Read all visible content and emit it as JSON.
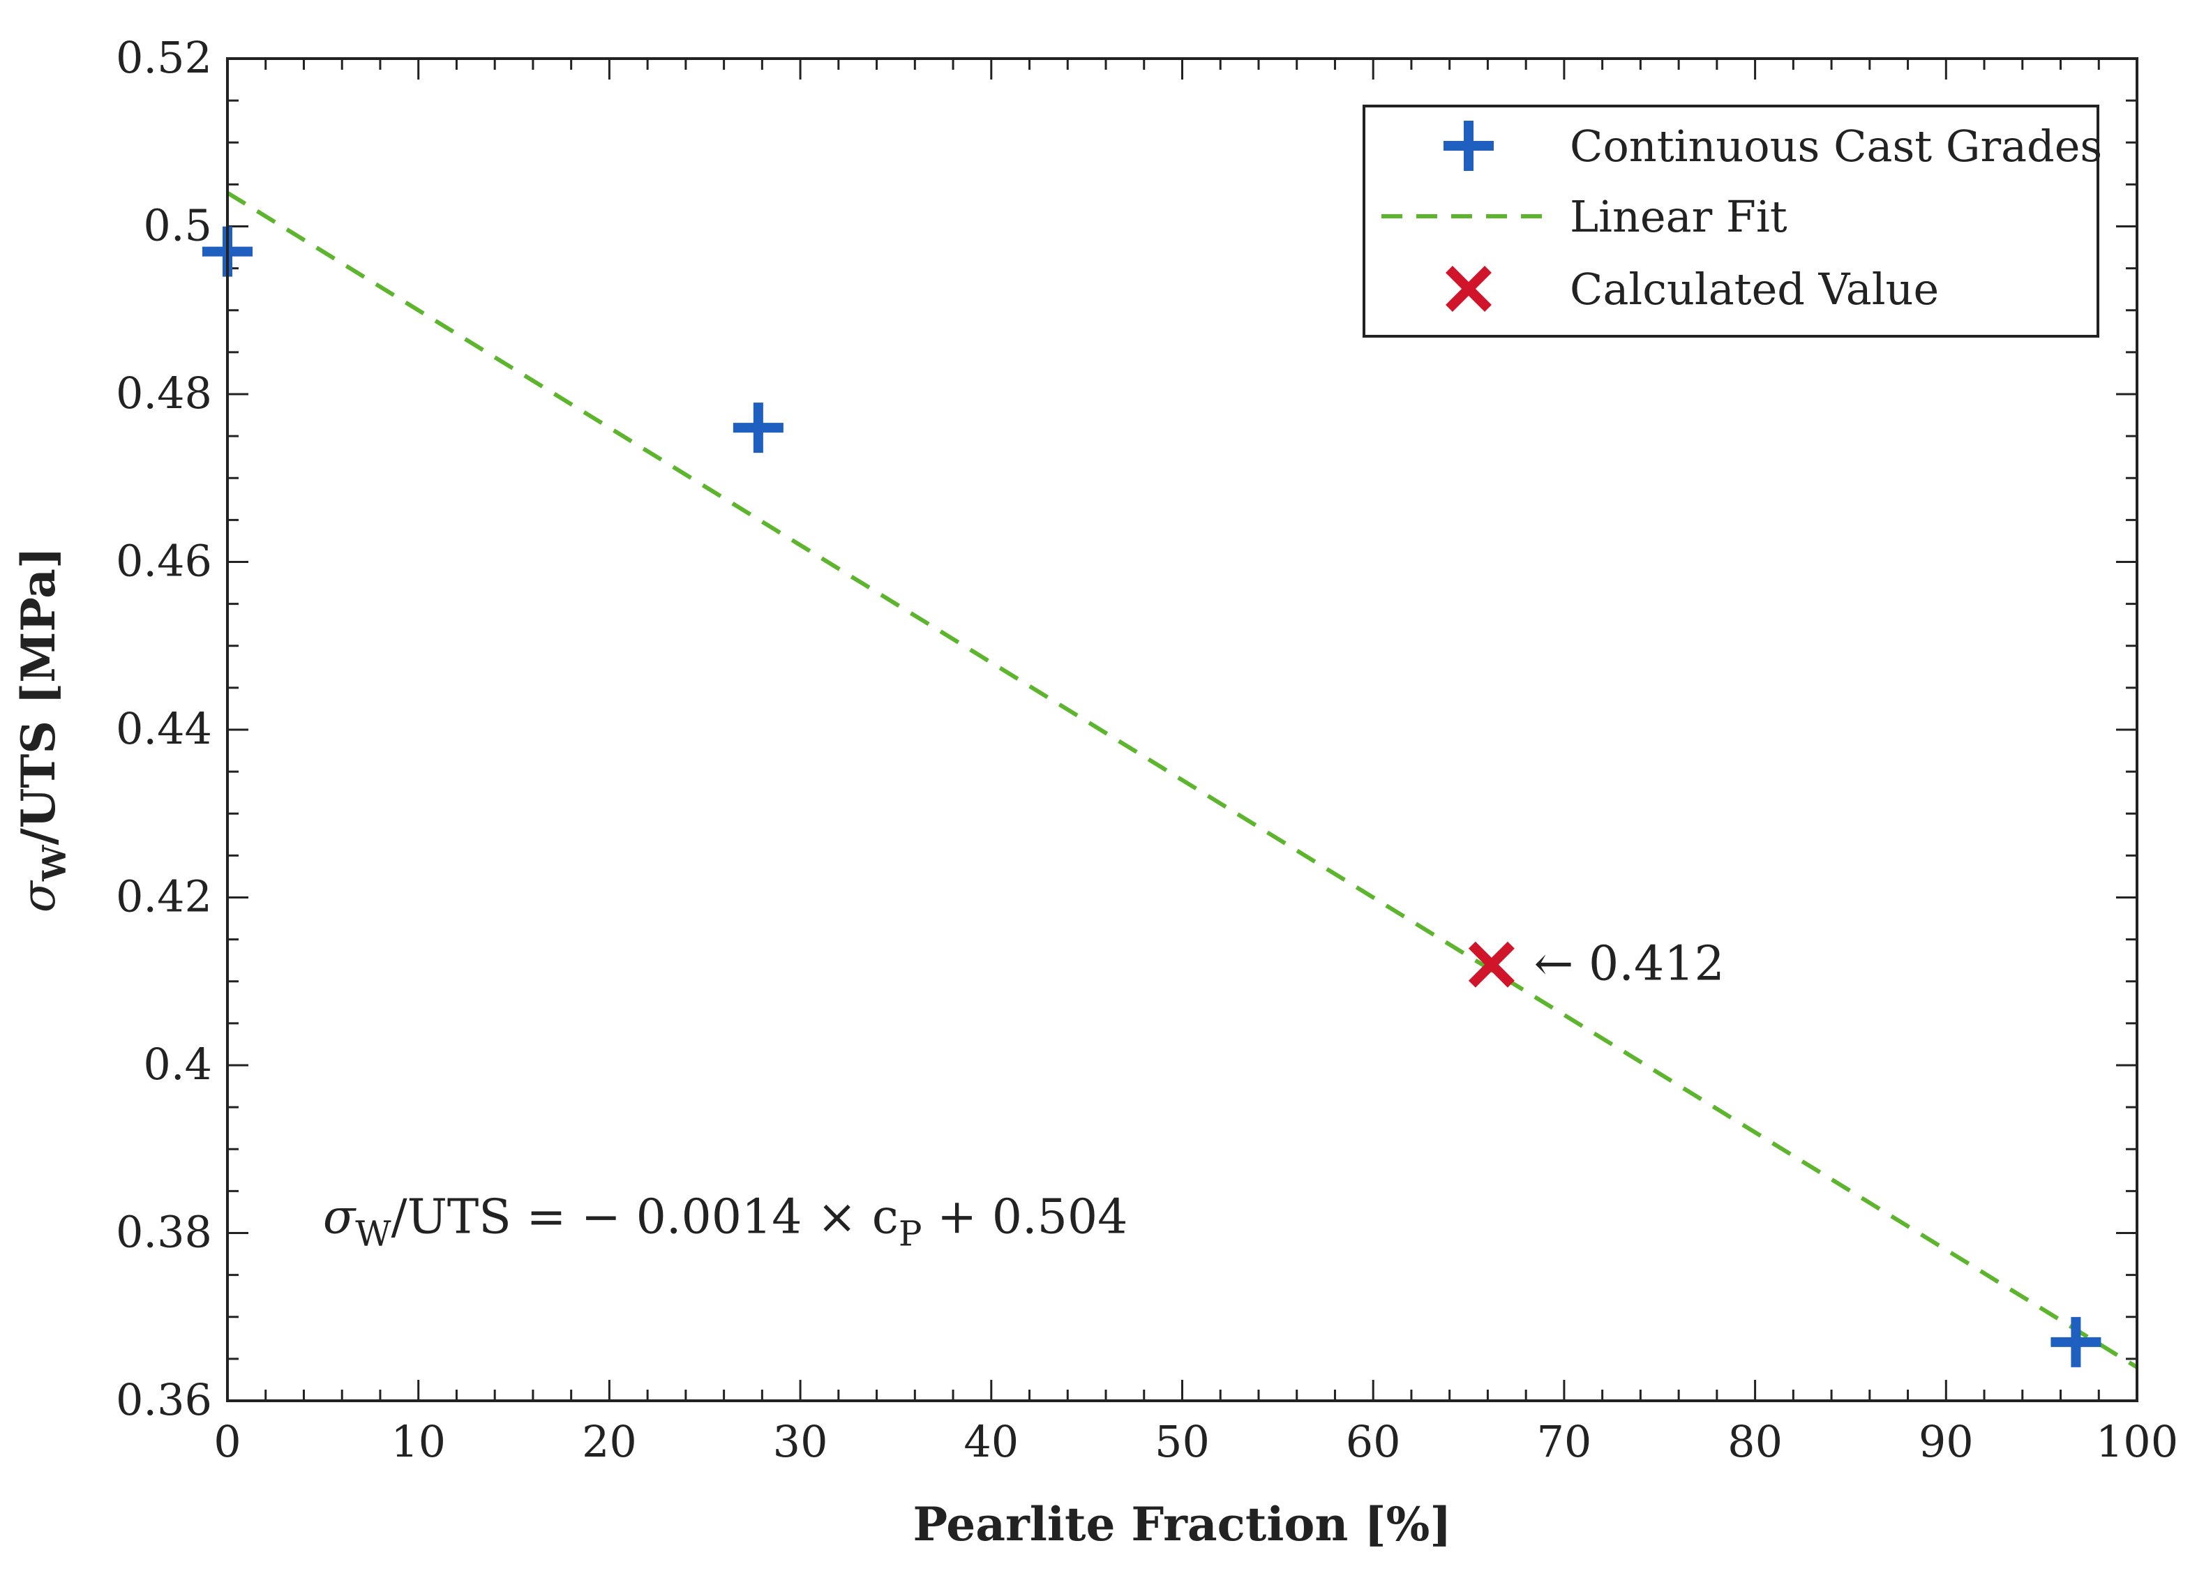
{
  "chart_data": {
    "type": "scatter",
    "title": "",
    "xlabel": "Pearlite Fraction [%]",
    "ylabel": {
      "sigma": "σ",
      "sub": "W",
      "rest": "/UTS [MPa]"
    },
    "xlim": [
      0,
      100
    ],
    "ylim": [
      0.36,
      0.52
    ],
    "xticks": [
      0,
      10,
      20,
      30,
      40,
      50,
      60,
      70,
      80,
      90,
      100
    ],
    "xtick_labels": [
      "0",
      "10",
      "20",
      "30",
      "40",
      "50",
      "60",
      "70",
      "80",
      "90",
      "100"
    ],
    "yticks": [
      0.36,
      0.38,
      0.4,
      0.42,
      0.44,
      0.46,
      0.48,
      0.5,
      0.52
    ],
    "ytick_labels": [
      "0.36",
      "0.38",
      "0.4",
      "0.42",
      "0.44",
      "0.46",
      "0.48",
      "0.5",
      "0.52"
    ],
    "grid": false,
    "legend_position": "top-right",
    "series": [
      {
        "name": "Continuous Cast Grades",
        "kind": "points",
        "marker": "plus",
        "color": "#1f5fbf",
        "x": [
          0,
          27.8,
          96.8
        ],
        "y": [
          0.497,
          0.476,
          0.367
        ]
      },
      {
        "name": "Linear Fit",
        "kind": "line",
        "style": "dashed",
        "color": "#5db52e",
        "x": [
          0,
          100
        ],
        "y": [
          0.504,
          0.364
        ]
      },
      {
        "name": "Calculated Value",
        "kind": "points",
        "marker": "cross",
        "color": "#d0152a",
        "x": [
          66.2
        ],
        "y": [
          0.412
        ]
      }
    ],
    "annotations": [
      {
        "text": "← 0.412",
        "x": 67.5,
        "y": 0.412
      },
      {
        "equation": {
          "sigma": "σ",
          "sub1": "W",
          "mid": "/UTS = − 0.0014 × c",
          "sub2": "P",
          "tail": " + 0.504"
        },
        "x": 5,
        "y": 0.382
      }
    ]
  }
}
